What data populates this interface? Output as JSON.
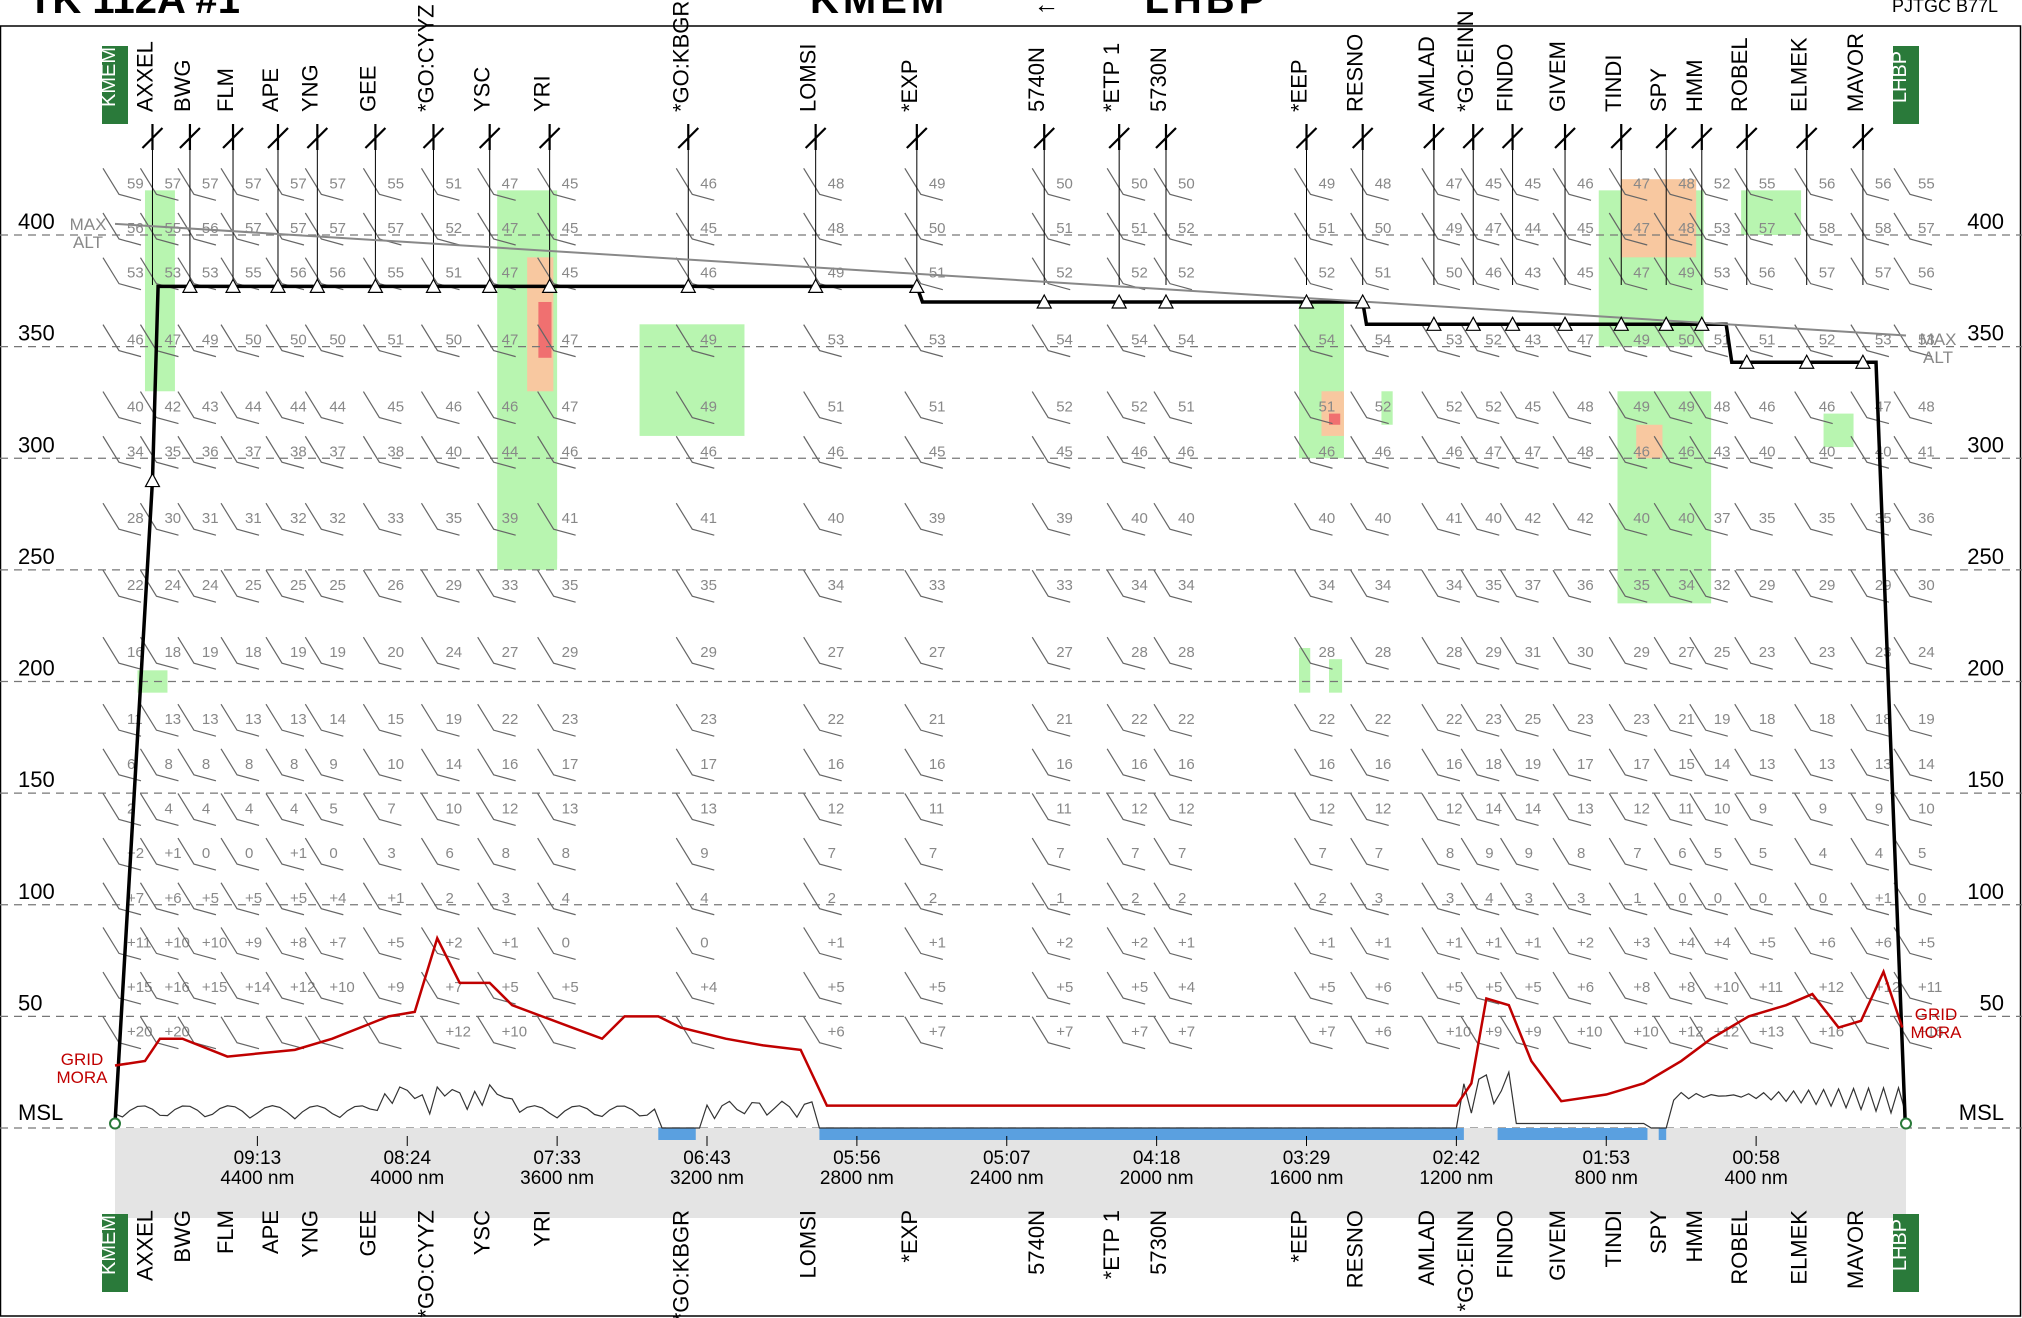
{
  "header": {
    "flight": "TK 112A #1",
    "route_from": "KMEM",
    "route_to": "LHBP",
    "aircraft": "PJTGC B77L"
  },
  "chart_data": {
    "type": "line",
    "title": "",
    "ylabel": "",
    "y_ticks": [
      400,
      350,
      300,
      250,
      200,
      150,
      100,
      50
    ],
    "msl_label": "MSL",
    "ylim": [
      0,
      425
    ],
    "xlim_nm": [
      4780,
      0
    ],
    "x_ticks": [
      {
        "time": "09:13",
        "dist": "4400 nm",
        "nm": 4400
      },
      {
        "time": "08:24",
        "dist": "4000 nm",
        "nm": 4000
      },
      {
        "time": "07:33",
        "dist": "3600 nm",
        "nm": 3600
      },
      {
        "time": "06:43",
        "dist": "3200 nm",
        "nm": 3200
      },
      {
        "time": "05:56",
        "dist": "2800 nm",
        "nm": 2800
      },
      {
        "time": "05:07",
        "dist": "2400 nm",
        "nm": 2400
      },
      {
        "time": "04:18",
        "dist": "2000 nm",
        "nm": 2000
      },
      {
        "time": "03:29",
        "dist": "1600 nm",
        "nm": 1600
      },
      {
        "time": "02:42",
        "dist": "1200 nm",
        "nm": 1200
      },
      {
        "time": "01:53",
        "dist": "800 nm",
        "nm": 800
      },
      {
        "time": "00:58",
        "dist": "400 nm",
        "nm": 400
      }
    ],
    "waypoints": [
      {
        "name": "KMEM",
        "nm": 4780,
        "airport": true
      },
      {
        "name": "AXXEL",
        "nm": 4680
      },
      {
        "name": "BWG",
        "nm": 4580
      },
      {
        "name": "FLM",
        "nm": 4465
      },
      {
        "name": "APE",
        "nm": 4345
      },
      {
        "name": "YNG",
        "nm": 4240
      },
      {
        "name": "GEE",
        "nm": 4085
      },
      {
        "name": "*GO:CYYZ",
        "nm": 3930
      },
      {
        "name": "YSC",
        "nm": 3780
      },
      {
        "name": "YRI",
        "nm": 3620
      },
      {
        "name": "*GO:KBGR",
        "nm": 3250
      },
      {
        "name": "LOMSI",
        "nm": 2910
      },
      {
        "name": "*EXP",
        "nm": 2640
      },
      {
        "name": "5740N",
        "nm": 2300
      },
      {
        "name": "*ETP 1",
        "nm": 2100
      },
      {
        "name": "5730N",
        "nm": 1975
      },
      {
        "name": "*EEP",
        "nm": 1600
      },
      {
        "name": "RESNO",
        "nm": 1450
      },
      {
        "name": "AMLAD",
        "nm": 1260
      },
      {
        "name": "*GO:EINN",
        "nm": 1155
      },
      {
        "name": "FINDO",
        "nm": 1050
      },
      {
        "name": "GIVEM",
        "nm": 910
      },
      {
        "name": "TINDI",
        "nm": 760
      },
      {
        "name": "SPY",
        "nm": 640
      },
      {
        "name": "HMM",
        "nm": 545
      },
      {
        "name": "ROBEL",
        "nm": 425
      },
      {
        "name": "ELMEK",
        "nm": 265
      },
      {
        "name": "MAVOR",
        "nm": 115
      },
      {
        "name": "LHBP",
        "nm": 0,
        "airport": true
      }
    ],
    "series": [
      {
        "name": "",
        "color": "#000000",
        "points": [
          [
            4780,
            2
          ],
          [
            4680,
            290
          ],
          [
            4665,
            377
          ],
          [
            2640,
            377
          ],
          [
            2625,
            370
          ],
          [
            1450,
            370
          ],
          [
            1440,
            360
          ],
          [
            480,
            360
          ],
          [
            465,
            343
          ],
          [
            80,
            343
          ],
          [
            2,
            2
          ]
        ]
      },
      {
        "name": "MAX ALT",
        "color": "#888888",
        "points": [
          [
            4780,
            405
          ],
          [
            0,
            355
          ]
        ]
      },
      {
        "name": "GRID MORA",
        "color": "#c00000",
        "points": [
          [
            4780,
            28
          ],
          [
            4700,
            30
          ],
          [
            4660,
            40
          ],
          [
            4600,
            40
          ],
          [
            4480,
            32
          ],
          [
            4300,
            35
          ],
          [
            4200,
            40
          ],
          [
            4050,
            50
          ],
          [
            3980,
            52
          ],
          [
            3920,
            85
          ],
          [
            3860,
            65
          ],
          [
            3780,
            65
          ],
          [
            3720,
            55
          ],
          [
            3640,
            50
          ],
          [
            3560,
            45
          ],
          [
            3480,
            40
          ],
          [
            3420,
            50
          ],
          [
            3330,
            50
          ],
          [
            3270,
            45
          ],
          [
            3150,
            40
          ],
          [
            3050,
            37
          ],
          [
            2950,
            35
          ],
          [
            2880,
            10
          ],
          [
            2700,
            10
          ],
          [
            1200,
            10
          ],
          [
            1160,
            20
          ],
          [
            1120,
            58
          ],
          [
            1060,
            55
          ],
          [
            1000,
            30
          ],
          [
            920,
            12
          ],
          [
            800,
            15
          ],
          [
            700,
            20
          ],
          [
            600,
            30
          ],
          [
            520,
            40
          ],
          [
            420,
            50
          ],
          [
            320,
            55
          ],
          [
            250,
            60
          ],
          [
            180,
            45
          ],
          [
            120,
            48
          ],
          [
            60,
            70
          ],
          [
            10,
            45
          ]
        ]
      }
    ],
    "wind_levels": [
      {
        "fl": 420,
        "temps": [
          "59",
          "57",
          "57",
          "57",
          "57",
          "57",
          "55",
          "51",
          "47",
          "45",
          "46",
          "48",
          "49",
          "50",
          "50",
          "50",
          "49",
          "48",
          "47",
          "45",
          "45",
          "46",
          "47",
          "48",
          "52",
          "55",
          "56",
          "56",
          "55"
        ]
      },
      {
        "fl": 400,
        "temps": [
          "56",
          "55",
          "56",
          "57",
          "57",
          "57",
          "57",
          "52",
          "47",
          "45",
          "45",
          "48",
          "50",
          "51",
          "51",
          "52",
          "51",
          "50",
          "49",
          "47",
          "44",
          "45",
          "47",
          "48",
          "53",
          "57",
          "58",
          "58",
          "57"
        ]
      },
      {
        "fl": 380,
        "temps": [
          "53",
          "53",
          "53",
          "55",
          "56",
          "56",
          "55",
          "51",
          "47",
          "45",
          "46",
          "49",
          "51",
          "52",
          "52",
          "52",
          "52",
          "51",
          "50",
          "46",
          "43",
          "45",
          "47",
          "49",
          "53",
          "56",
          "57",
          "57",
          "56"
        ]
      },
      {
        "fl": 350,
        "temps": [
          "46",
          "47",
          "49",
          "50",
          "50",
          "50",
          "51",
          "50",
          "47",
          "47",
          "49",
          "53",
          "53",
          "54",
          "54",
          "54",
          "54",
          "54",
          "53",
          "52",
          "43",
          "47",
          "49",
          "50",
          "51",
          "51",
          "52",
          "53",
          "53"
        ]
      },
      {
        "fl": 320,
        "temps": [
          "40",
          "42",
          "43",
          "44",
          "44",
          "44",
          "45",
          "46",
          "46",
          "47",
          "49",
          "51",
          "51",
          "52",
          "52",
          "51",
          "51",
          "52",
          "52",
          "52",
          "45",
          "48",
          "49",
          "49",
          "48",
          "46",
          "46",
          "47",
          "48"
        ]
      },
      {
        "fl": 300,
        "temps": [
          "34",
          "35",
          "36",
          "37",
          "38",
          "37",
          "38",
          "40",
          "44",
          "46",
          "46",
          "46",
          "45",
          "45",
          "46",
          "46",
          "46",
          "46",
          "46",
          "47",
          "47",
          "48",
          "46",
          "46",
          "43",
          "40",
          "40",
          "40",
          "41"
        ]
      },
      {
        "fl": 270,
        "temps": [
          "28",
          "30",
          "31",
          "31",
          "32",
          "32",
          "33",
          "35",
          "39",
          "41",
          "41",
          "40",
          "39",
          "39",
          "40",
          "40",
          "40",
          "40",
          "41",
          "40",
          "42",
          "42",
          "40",
          "40",
          "37",
          "35",
          "35",
          "35",
          "36"
        ]
      },
      {
        "fl": 240,
        "temps": [
          "22",
          "24",
          "24",
          "25",
          "25",
          "25",
          "26",
          "29",
          "33",
          "35",
          "35",
          "34",
          "33",
          "33",
          "34",
          "34",
          "34",
          "34",
          "34",
          "35",
          "37",
          "36",
          "35",
          "34",
          "32",
          "29",
          "29",
          "29",
          "30"
        ]
      },
      {
        "fl": 210,
        "temps": [
          "16",
          "18",
          "19",
          "18",
          "19",
          "19",
          "20",
          "24",
          "27",
          "29",
          "29",
          "27",
          "27",
          "27",
          "28",
          "28",
          "28",
          "28",
          "28",
          "29",
          "31",
          "30",
          "29",
          "27",
          "25",
          "23",
          "23",
          "23",
          "24"
        ]
      },
      {
        "fl": 180,
        "temps": [
          "11",
          "13",
          "13",
          "13",
          "13",
          "14",
          "15",
          "19",
          "22",
          "23",
          "23",
          "22",
          "21",
          "21",
          "22",
          "22",
          "22",
          "22",
          "22",
          "23",
          "25",
          "23",
          "23",
          "21",
          "19",
          "18",
          "18",
          "18",
          "19"
        ]
      },
      {
        "fl": 160,
        "temps": [
          "6",
          "8",
          "8",
          "8",
          "8",
          "9",
          "10",
          "14",
          "16",
          "17",
          "17",
          "16",
          "16",
          "16",
          "16",
          "16",
          "16",
          "16",
          "16",
          "18",
          "19",
          "17",
          "17",
          "15",
          "14",
          "13",
          "13",
          "13",
          "14"
        ]
      },
      {
        "fl": 140,
        "temps": [
          "2",
          "4",
          "4",
          "4",
          "4",
          "5",
          "7",
          "10",
          "12",
          "13",
          "13",
          "12",
          "11",
          "11",
          "12",
          "12",
          "12",
          "12",
          "12",
          "14",
          "14",
          "13",
          "12",
          "11",
          "10",
          "9",
          "9",
          "9",
          "10"
        ]
      },
      {
        "fl": 120,
        "temps": [
          "+2",
          "+1",
          "0",
          "0",
          "+1",
          "0",
          "3",
          "6",
          "8",
          "8",
          "9",
          "7",
          "7",
          "7",
          "7",
          "7",
          "7",
          "7",
          "8",
          "9",
          "9",
          "8",
          "7",
          "6",
          "5",
          "5",
          "4",
          "4",
          "5"
        ]
      },
      {
        "fl": 100,
        "temps": [
          "+7",
          "+6",
          "+5",
          "+5",
          "+5",
          "+4",
          "+1",
          "2",
          "3",
          "4",
          "4",
          "2",
          "2",
          "1",
          "2",
          "2",
          "2",
          "3",
          "3",
          "4",
          "3",
          "3",
          "1",
          "0",
          "0",
          "0",
          "0",
          "+1",
          "0"
        ]
      },
      {
        "fl": 80,
        "temps": [
          "+11",
          "+10",
          "+10",
          "+9",
          "+8",
          "+7",
          "+5",
          "+2",
          "+1",
          "0",
          "0",
          "+1",
          "+1",
          "+2",
          "+2",
          "+1",
          "+1",
          "+1",
          "+1",
          "+1",
          "+1",
          "+2",
          "+3",
          "+4",
          "+4",
          "+5",
          "+6",
          "+6",
          "+5"
        ]
      },
      {
        "fl": 60,
        "temps": [
          "+15",
          "+16",
          "+15",
          "+14",
          "+12",
          "+10",
          "+9",
          "+7",
          "+5",
          "+5",
          "+4",
          "+5",
          "+5",
          "+5",
          "+5",
          "+4",
          "+5",
          "+6",
          "+5",
          "+5",
          "+5",
          "+6",
          "+8",
          "+8",
          "+10",
          "+11",
          "+12",
          "+12",
          "+11"
        ]
      },
      {
        "fl": 40,
        "temps": [
          "+20",
          "+20",
          "",
          "",
          "",
          "",
          "",
          "+12",
          "+10",
          "",
          "",
          "+6",
          "+7",
          "+7",
          "+7",
          "+7",
          "+7",
          "+6",
          "+10",
          "+9",
          "+9",
          "+10",
          "+10",
          "+12",
          "+12",
          "+13",
          "+16",
          "",
          "+16"
        ]
      }
    ],
    "turbulence_legend_colors": {
      "light": "#b8f5b0",
      "moderate": "#f8c8a0",
      "severe": "#f07070"
    },
    "labels": {
      "max_alt": "MAX\nALT",
      "grid_mora": "GRID\nMORA"
    },
    "grid": true
  }
}
